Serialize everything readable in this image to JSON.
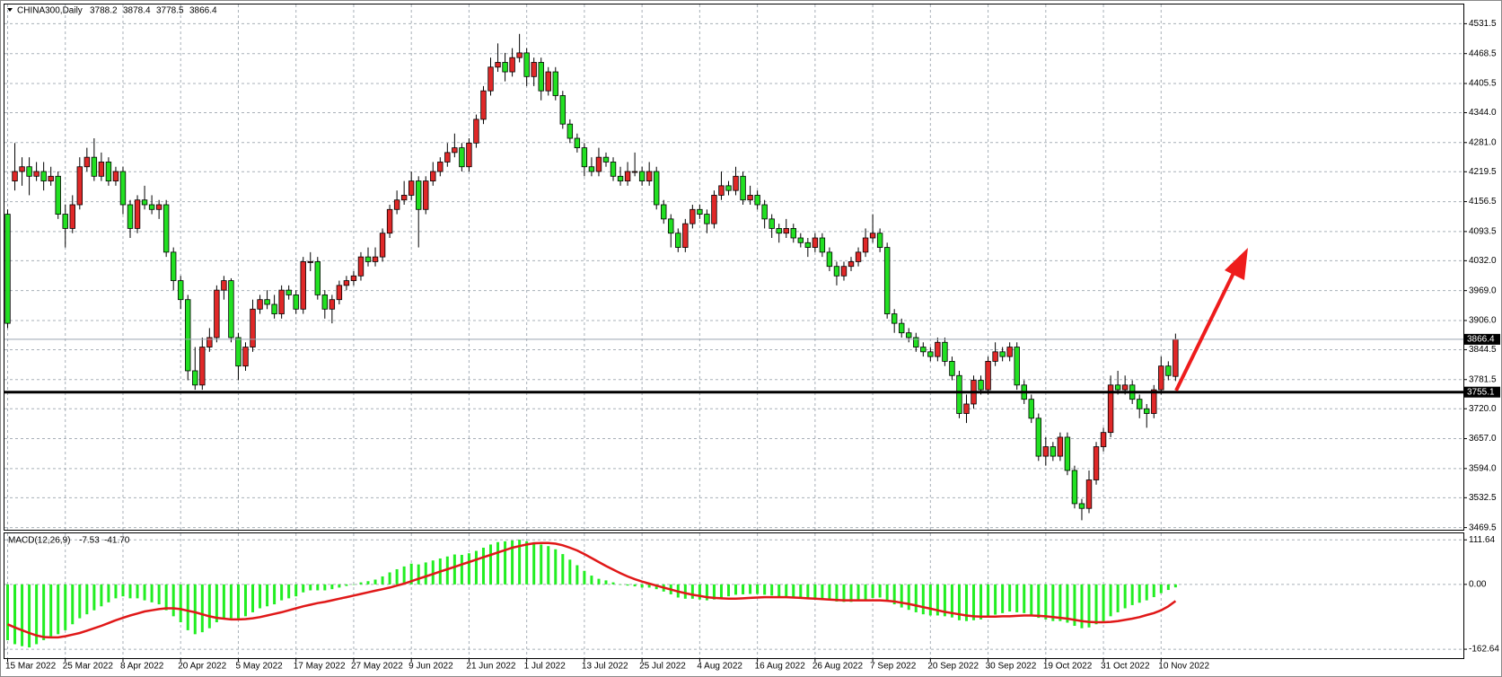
{
  "chart_data": {
    "type": "candlestick",
    "title": "CHINA300,Daily",
    "up_color": "#e02828",
    "down_color": "#22e022",
    "categories": [
      "15 Mar 2022",
      null,
      null,
      null,
      null,
      null,
      null,
      null,
      "25 Mar 2022",
      null,
      null,
      null,
      null,
      null,
      null,
      null,
      "8 Apr 2022",
      null,
      null,
      null,
      null,
      null,
      null,
      null,
      "20 Apr 2022",
      null,
      null,
      null,
      null,
      null,
      null,
      null,
      "5 May 2022",
      null,
      null,
      null,
      null,
      null,
      null,
      null,
      "17 May 2022",
      null,
      null,
      null,
      null,
      null,
      null,
      null,
      "27 May 2022",
      null,
      null,
      null,
      null,
      null,
      null,
      null,
      "9 Jun 2022",
      null,
      null,
      null,
      null,
      null,
      null,
      null,
      "21 Jun 2022",
      null,
      null,
      null,
      null,
      null,
      null,
      null,
      "1 Jul 2022",
      null,
      null,
      null,
      null,
      null,
      null,
      null,
      "13 Jul 2022",
      null,
      null,
      null,
      null,
      null,
      null,
      null,
      "25 Jul 2022",
      null,
      null,
      null,
      null,
      null,
      null,
      null,
      "4 Aug 2022",
      null,
      null,
      null,
      null,
      null,
      null,
      null,
      "16 Aug 2022",
      null,
      null,
      null,
      null,
      null,
      null,
      null,
      "26 Aug 2022",
      null,
      null,
      null,
      null,
      null,
      null,
      null,
      "7 Sep 2022",
      null,
      null,
      null,
      null,
      null,
      null,
      null,
      "20 Sep 2022",
      null,
      null,
      null,
      null,
      null,
      null,
      null,
      "30 Sep 2022",
      null,
      null,
      null,
      null,
      null,
      null,
      null,
      "19 Oct 2022",
      null,
      null,
      null,
      null,
      null,
      null,
      null,
      "31 Oct 2022",
      null,
      null,
      null,
      null,
      null,
      null,
      null,
      "10 Nov 2022",
      null,
      null
    ],
    "ohlc": [
      [
        4130,
        4140,
        3890,
        3900
      ],
      [
        4200,
        4280,
        4180,
        4220
      ],
      [
        4220,
        4250,
        4190,
        4230
      ],
      [
        4230,
        4250,
        4170,
        4210
      ],
      [
        4210,
        4240,
        4200,
        4220
      ],
      [
        4220,
        4240,
        4180,
        4200
      ],
      [
        4200,
        4230,
        4190,
        4210
      ],
      [
        4210,
        4220,
        4120,
        4130
      ],
      [
        4130,
        4150,
        4060,
        4100
      ],
      [
        4100,
        4170,
        4090,
        4150
      ],
      [
        4150,
        4250,
        4140,
        4230
      ],
      [
        4230,
        4270,
        4220,
        4250
      ],
      [
        4250,
        4290,
        4200,
        4210
      ],
      [
        4210,
        4260,
        4200,
        4240
      ],
      [
        4240,
        4250,
        4190,
        4200
      ],
      [
        4200,
        4230,
        4190,
        4220
      ],
      [
        4220,
        4230,
        4130,
        4150
      ],
      [
        4150,
        4160,
        4080,
        4100
      ],
      [
        4100,
        4170,
        4090,
        4160
      ],
      [
        4160,
        4190,
        4140,
        4150
      ],
      [
        4150,
        4170,
        4130,
        4140
      ],
      [
        4140,
        4160,
        4120,
        4150
      ],
      [
        4150,
        4160,
        4040,
        4050
      ],
      [
        4050,
        4060,
        3970,
        3990
      ],
      [
        3990,
        4000,
        3930,
        3950
      ],
      [
        3950,
        3960,
        3780,
        3800
      ],
      [
        3800,
        3850,
        3760,
        3770
      ],
      [
        3770,
        3870,
        3760,
        3850
      ],
      [
        3850,
        3890,
        3840,
        3870
      ],
      [
        3870,
        3980,
        3860,
        3970
      ],
      [
        3970,
        4000,
        3950,
        3990
      ],
      [
        3990,
        3995,
        3860,
        3870
      ],
      [
        3870,
        3880,
        3780,
        3810
      ],
      [
        3810,
        3860,
        3800,
        3850
      ],
      [
        3850,
        3950,
        3840,
        3930
      ],
      [
        3930,
        3960,
        3920,
        3950
      ],
      [
        3950,
        3970,
        3930,
        3940
      ],
      [
        3940,
        3960,
        3910,
        3920
      ],
      [
        3920,
        3980,
        3910,
        3970
      ],
      [
        3970,
        3980,
        3950,
        3960
      ],
      [
        3960,
        3970,
        3920,
        3930
      ],
      [
        3930,
        4040,
        3920,
        4030
      ],
      [
        4030,
        4050,
        4010,
        4030
      ],
      [
        4030,
        4040,
        3950,
        3960
      ],
      [
        3960,
        3970,
        3910,
        3930
      ],
      [
        3930,
        3960,
        3900,
        3950
      ],
      [
        3950,
        3990,
        3940,
        3980
      ],
      [
        3980,
        4000,
        3970,
        3990
      ],
      [
        3990,
        4010,
        3980,
        4000
      ],
      [
        4000,
        4050,
        3990,
        4040
      ],
      [
        4040,
        4060,
        4020,
        4030
      ],
      [
        4030,
        4060,
        4020,
        4040
      ],
      [
        4040,
        4100,
        4030,
        4090
      ],
      [
        4090,
        4150,
        4080,
        4140
      ],
      [
        4140,
        4180,
        4130,
        4160
      ],
      [
        4160,
        4200,
        4150,
        4170
      ],
      [
        4170,
        4220,
        4160,
        4200
      ],
      [
        4200,
        4210,
        4060,
        4140
      ],
      [
        4140,
        4210,
        4130,
        4200
      ],
      [
        4200,
        4240,
        4190,
        4220
      ],
      [
        4220,
        4250,
        4210,
        4240
      ],
      [
        4240,
        4280,
        4230,
        4260
      ],
      [
        4260,
        4300,
        4250,
        4270
      ],
      [
        4270,
        4280,
        4220,
        4230
      ],
      [
        4230,
        4290,
        4220,
        4280
      ],
      [
        4280,
        4340,
        4270,
        4330
      ],
      [
        4330,
        4400,
        4320,
        4390
      ],
      [
        4390,
        4460,
        4380,
        4440
      ],
      [
        4440,
        4490,
        4430,
        4450
      ],
      [
        4450,
        4470,
        4410,
        4430
      ],
      [
        4430,
        4480,
        4420,
        4460
      ],
      [
        4460,
        4510,
        4450,
        4470
      ],
      [
        4470,
        4480,
        4400,
        4420
      ],
      [
        4420,
        4460,
        4400,
        4450
      ],
      [
        4450,
        4460,
        4370,
        4390
      ],
      [
        4390,
        4440,
        4380,
        4430
      ],
      [
        4430,
        4440,
        4370,
        4380
      ],
      [
        4380,
        4390,
        4310,
        4320
      ],
      [
        4320,
        4330,
        4280,
        4290
      ],
      [
        4290,
        4300,
        4260,
        4270
      ],
      [
        4270,
        4280,
        4210,
        4230
      ],
      [
        4230,
        4250,
        4210,
        4220
      ],
      [
        4220,
        4270,
        4210,
        4250
      ],
      [
        4250,
        4260,
        4230,
        4240
      ],
      [
        4240,
        4250,
        4200,
        4210
      ],
      [
        4210,
        4230,
        4190,
        4200
      ],
      [
        4200,
        4240,
        4190,
        4220
      ],
      [
        4220,
        4260,
        4210,
        4220
      ],
      [
        4220,
        4230,
        4190,
        4200
      ],
      [
        4200,
        4240,
        4190,
        4220
      ],
      [
        4220,
        4230,
        4140,
        4150
      ],
      [
        4150,
        4160,
        4110,
        4120
      ],
      [
        4120,
        4130,
        4060,
        4090
      ],
      [
        4090,
        4100,
        4050,
        4060
      ],
      [
        4060,
        4120,
        4050,
        4110
      ],
      [
        4110,
        4150,
        4100,
        4140
      ],
      [
        4140,
        4150,
        4120,
        4130
      ],
      [
        4130,
        4140,
        4090,
        4110
      ],
      [
        4110,
        4180,
        4100,
        4170
      ],
      [
        4170,
        4220,
        4160,
        4190
      ],
      [
        4190,
        4200,
        4170,
        4180
      ],
      [
        4180,
        4230,
        4170,
        4210
      ],
      [
        4210,
        4220,
        4150,
        4160
      ],
      [
        4160,
        4190,
        4150,
        4170
      ],
      [
        4170,
        4180,
        4140,
        4150
      ],
      [
        4150,
        4160,
        4100,
        4120
      ],
      [
        4120,
        4130,
        4080,
        4100
      ],
      [
        4100,
        4110,
        4070,
        4090
      ],
      [
        4090,
        4120,
        4080,
        4100
      ],
      [
        4100,
        4110,
        4070,
        4080
      ],
      [
        4080,
        4090,
        4060,
        4070
      ],
      [
        4070,
        4080,
        4040,
        4060
      ],
      [
        4060,
        4090,
        4050,
        4080
      ],
      [
        4080,
        4090,
        4040,
        4050
      ],
      [
        4050,
        4060,
        4010,
        4020
      ],
      [
        4020,
        4030,
        3980,
        4000
      ],
      [
        4000,
        4030,
        3990,
        4020
      ],
      [
        4020,
        4040,
        4010,
        4030
      ],
      [
        4030,
        4060,
        4020,
        4050
      ],
      [
        4050,
        4100,
        4040,
        4080
      ],
      [
        4080,
        4130,
        4070,
        4090
      ],
      [
        4090,
        4100,
        4050,
        4060
      ],
      [
        4060,
        4070,
        3910,
        3920
      ],
      [
        3920,
        3930,
        3880,
        3900
      ],
      [
        3900,
        3910,
        3870,
        3880
      ],
      [
        3880,
        3890,
        3860,
        3870
      ],
      [
        3870,
        3880,
        3840,
        3850
      ],
      [
        3850,
        3860,
        3830,
        3840
      ],
      [
        3840,
        3850,
        3820,
        3830
      ],
      [
        3830,
        3870,
        3820,
        3860
      ],
      [
        3860,
        3870,
        3810,
        3820
      ],
      [
        3820,
        3830,
        3780,
        3790
      ],
      [
        3790,
        3800,
        3700,
        3710
      ],
      [
        3710,
        3750,
        3690,
        3730
      ],
      [
        3730,
        3790,
        3720,
        3780
      ],
      [
        3780,
        3790,
        3750,
        3760
      ],
      [
        3760,
        3830,
        3750,
        3820
      ],
      [
        3820,
        3860,
        3810,
        3840
      ],
      [
        3840,
        3850,
        3820,
        3830
      ],
      [
        3830,
        3860,
        3820,
        3850
      ],
      [
        3850,
        3860,
        3760,
        3770
      ],
      [
        3770,
        3780,
        3730,
        3740
      ],
      [
        3740,
        3750,
        3690,
        3700
      ],
      [
        3700,
        3710,
        3610,
        3620
      ],
      [
        3620,
        3660,
        3600,
        3640
      ],
      [
        3640,
        3650,
        3610,
        3620
      ],
      [
        3620,
        3670,
        3610,
        3660
      ],
      [
        3660,
        3670,
        3580,
        3590
      ],
      [
        3590,
        3600,
        3510,
        3520
      ],
      [
        3520,
        3530,
        3485,
        3510
      ],
      [
        3510,
        3590,
        3500,
        3570
      ],
      [
        3570,
        3650,
        3560,
        3640
      ],
      [
        3640,
        3680,
        3630,
        3670
      ],
      [
        3670,
        3790,
        3660,
        3770
      ],
      [
        3770,
        3800,
        3750,
        3760
      ],
      [
        3760,
        3790,
        3750,
        3770
      ],
      [
        3770,
        3780,
        3730,
        3740
      ],
      [
        3740,
        3750,
        3700,
        3720
      ],
      [
        3720,
        3730,
        3680,
        3710
      ],
      [
        3710,
        3770,
        3700,
        3760
      ],
      [
        3760,
        3830,
        3750,
        3810
      ],
      [
        3810,
        3820,
        3780,
        3790
      ],
      [
        3788.2,
        3878.4,
        3778.5,
        3866.4
      ]
    ],
    "ylim": [
      3465,
      4572
    ],
    "yticks": [
      4531.5,
      4468.5,
      4405.5,
      {
        "value": 4344,
        "label": "4344.0"
      },
      {
        "value": 4281,
        "label": "4281.0"
      },
      4219.5,
      4156.5,
      4093.5,
      {
        "value": 4032,
        "label": "4032.0"
      },
      {
        "value": 3969,
        "label": "3969.0"
      },
      {
        "value": 3906,
        "label": "3906.0"
      },
      3844.5,
      3781.5,
      {
        "value": 3720,
        "label": "3720.0"
      },
      {
        "value": 3657,
        "label": "3657.0"
      },
      {
        "value": 3594,
        "label": "3594.0"
      },
      3532.5,
      3469.5
    ],
    "support_level": 3755.1,
    "grid": true,
    "macd": {
      "label": "MACD(12,26,9)",
      "histogram_color": "#22ee22",
      "signal_color": "#e01818",
      "histogram": [
        -140,
        -150,
        -155,
        -158,
        -150,
        -140,
        -130,
        -125,
        -115,
        -100,
        -85,
        -75,
        -65,
        -55,
        -45,
        -35,
        -30,
        -35,
        -35,
        -40,
        -45,
        -50,
        -65,
        -80,
        -95,
        -115,
        -125,
        -120,
        -110,
        -95,
        -85,
        -85,
        -85,
        -80,
        -70,
        -60,
        -55,
        -50,
        -40,
        -35,
        -30,
        -20,
        -15,
        -15,
        -15,
        -12,
        -8,
        -4,
        0,
        5,
        8,
        12,
        20,
        30,
        38,
        45,
        52,
        50,
        55,
        60,
        65,
        70,
        75,
        74,
        78,
        84,
        92,
        100,
        106,
        108,
        110,
        112,
        108,
        106,
        100,
        96,
        88,
        76,
        62,
        48,
        34,
        22,
        14,
        10,
        5,
        0,
        -3,
        -5,
        -8,
        -8,
        -12,
        -18,
        -25,
        -33,
        -36,
        -36,
        -38,
        -40,
        -38,
        -34,
        -30,
        -26,
        -25,
        -24,
        -24,
        -26,
        -28,
        -30,
        -30,
        -32,
        -34,
        -36,
        -36,
        -38,
        -40,
        -43,
        -44,
        -44,
        -42,
        -38,
        -34,
        -33,
        -42,
        -50,
        -58,
        -64,
        -70,
        -75,
        -78,
        -78,
        -80,
        -83,
        -90,
        -92,
        -90,
        -88,
        -82,
        -76,
        -72,
        -68,
        -70,
        -72,
        -76,
        -84,
        -88,
        -92,
        -92,
        -96,
        -104,
        -110,
        -108,
        -100,
        -92,
        -80,
        -70,
        -60,
        -52,
        -46,
        -40,
        -32,
        -22,
        -14,
        -7.53
      ],
      "signal": [
        -100,
        -108,
        -115,
        -122,
        -128,
        -132,
        -133,
        -133,
        -130,
        -126,
        -122,
        -116,
        -110,
        -104,
        -97,
        -90,
        -84,
        -78,
        -73,
        -68,
        -65,
        -62,
        -60,
        -60,
        -62,
        -66,
        -70,
        -75,
        -80,
        -84,
        -86,
        -88,
        -88,
        -87,
        -85,
        -82,
        -78,
        -74,
        -70,
        -65,
        -60,
        -55,
        -51,
        -47,
        -44,
        -40,
        -36,
        -32,
        -28,
        -24,
        -20,
        -16,
        -12,
        -8,
        -3,
        2,
        8,
        14,
        20,
        26,
        32,
        38,
        44,
        50,
        56,
        62,
        68,
        74,
        80,
        86,
        92,
        96,
        100,
        103,
        104,
        104,
        102,
        98,
        92,
        85,
        76,
        66,
        56,
        46,
        37,
        28,
        20,
        13,
        7,
        2,
        -3,
        -8,
        -13,
        -18,
        -22,
        -26,
        -29,
        -32,
        -34,
        -35,
        -36,
        -36,
        -35,
        -34,
        -33,
        -32,
        -32,
        -32,
        -32,
        -33,
        -34,
        -35,
        -36,
        -37,
        -38,
        -39,
        -40,
        -40,
        -40,
        -40,
        -40,
        -40,
        -41,
        -43,
        -46,
        -49,
        -53,
        -57,
        -61,
        -65,
        -69,
        -72,
        -75,
        -78,
        -80,
        -81,
        -81,
        -81,
        -80,
        -80,
        -79,
        -78,
        -78,
        -79,
        -80,
        -82,
        -84,
        -86,
        -89,
        -92,
        -94,
        -95,
        -95,
        -94,
        -92,
        -89,
        -86,
        -82,
        -77,
        -72,
        -65,
        -55,
        -41.7
      ],
      "signal_readout": {
        "value": -41.7,
        "label": "-41.70"
      },
      "ylim": [
        -185,
        128
      ],
      "yticks": [
        111.64,
        {
          "value": 0,
          "label": "0.00"
        },
        -162.64
      ]
    }
  }
}
